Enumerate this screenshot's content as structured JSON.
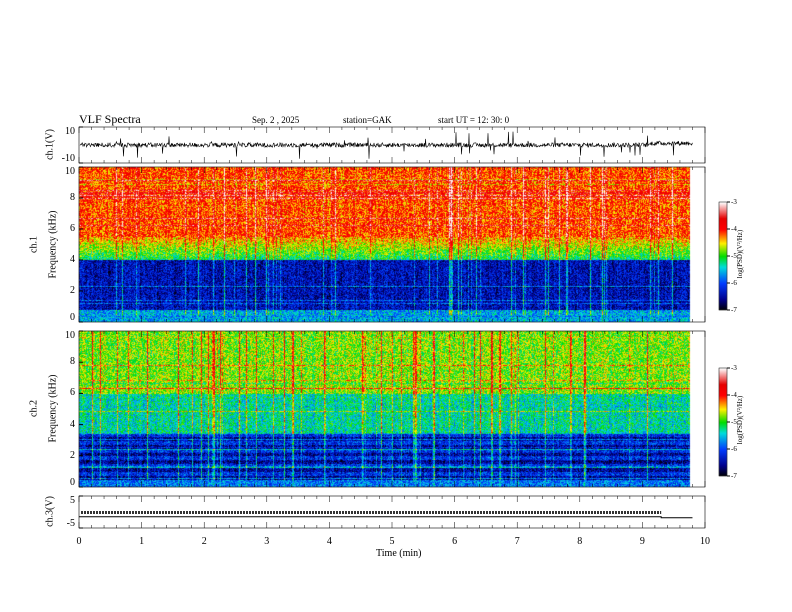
{
  "header": {
    "title": "VLF Spectra",
    "date": "Sep. 2 , 2025",
    "station": "station=GAK",
    "start": "start UT =  12: 30: 0"
  },
  "chart_data": [
    {
      "type": "line",
      "name": "ch1-waveform",
      "ylabel": "ch.1(V)",
      "ylim": [
        -10,
        10
      ],
      "yticks": [
        "10",
        "-10"
      ],
      "xlim": [
        0,
        10
      ],
      "description_level": "noisy signal around 0 V with spikes"
    },
    {
      "type": "heatmap",
      "name": "ch1-spectrogram",
      "ylabel1": "ch.1",
      "ylabel2": "Frequency  (kHz)",
      "ylim": [
        0,
        10
      ],
      "yticks": [
        "0",
        "2",
        "4",
        "6",
        "8",
        "10"
      ],
      "xlim": [
        0,
        10
      ]
    },
    {
      "type": "heatmap",
      "name": "ch2-spectrogram",
      "ylabel1": "ch.2",
      "ylabel2": "Frequency  (kHz)",
      "ylim": [
        0,
        10
      ],
      "yticks": [
        "0",
        "2",
        "4",
        "6",
        "8",
        "10"
      ],
      "xlim": [
        0,
        10
      ]
    },
    {
      "type": "line",
      "name": "ch3-waveform",
      "ylabel": "ch.3(V)",
      "ylim": [
        -5,
        5
      ],
      "yticks": [
        "5",
        "-5"
      ],
      "x": [
        0,
        9.3,
        9.3,
        9.8
      ],
      "y": [
        -1.5,
        -1.5,
        -1.8,
        -1.8
      ]
    }
  ],
  "xaxis": {
    "label": "Time  (min)",
    "ticks": [
      "0",
      "1",
      "2",
      "3",
      "4",
      "5",
      "6",
      "7",
      "8",
      "9",
      "10"
    ],
    "range": [
      0,
      10
    ]
  },
  "colorbar": {
    "label": "log(PSD)(V²/Hz)",
    "range": [
      -7,
      -3
    ],
    "ticks": [
      "-3",
      "-4",
      "-5",
      "-6",
      "-7"
    ]
  }
}
